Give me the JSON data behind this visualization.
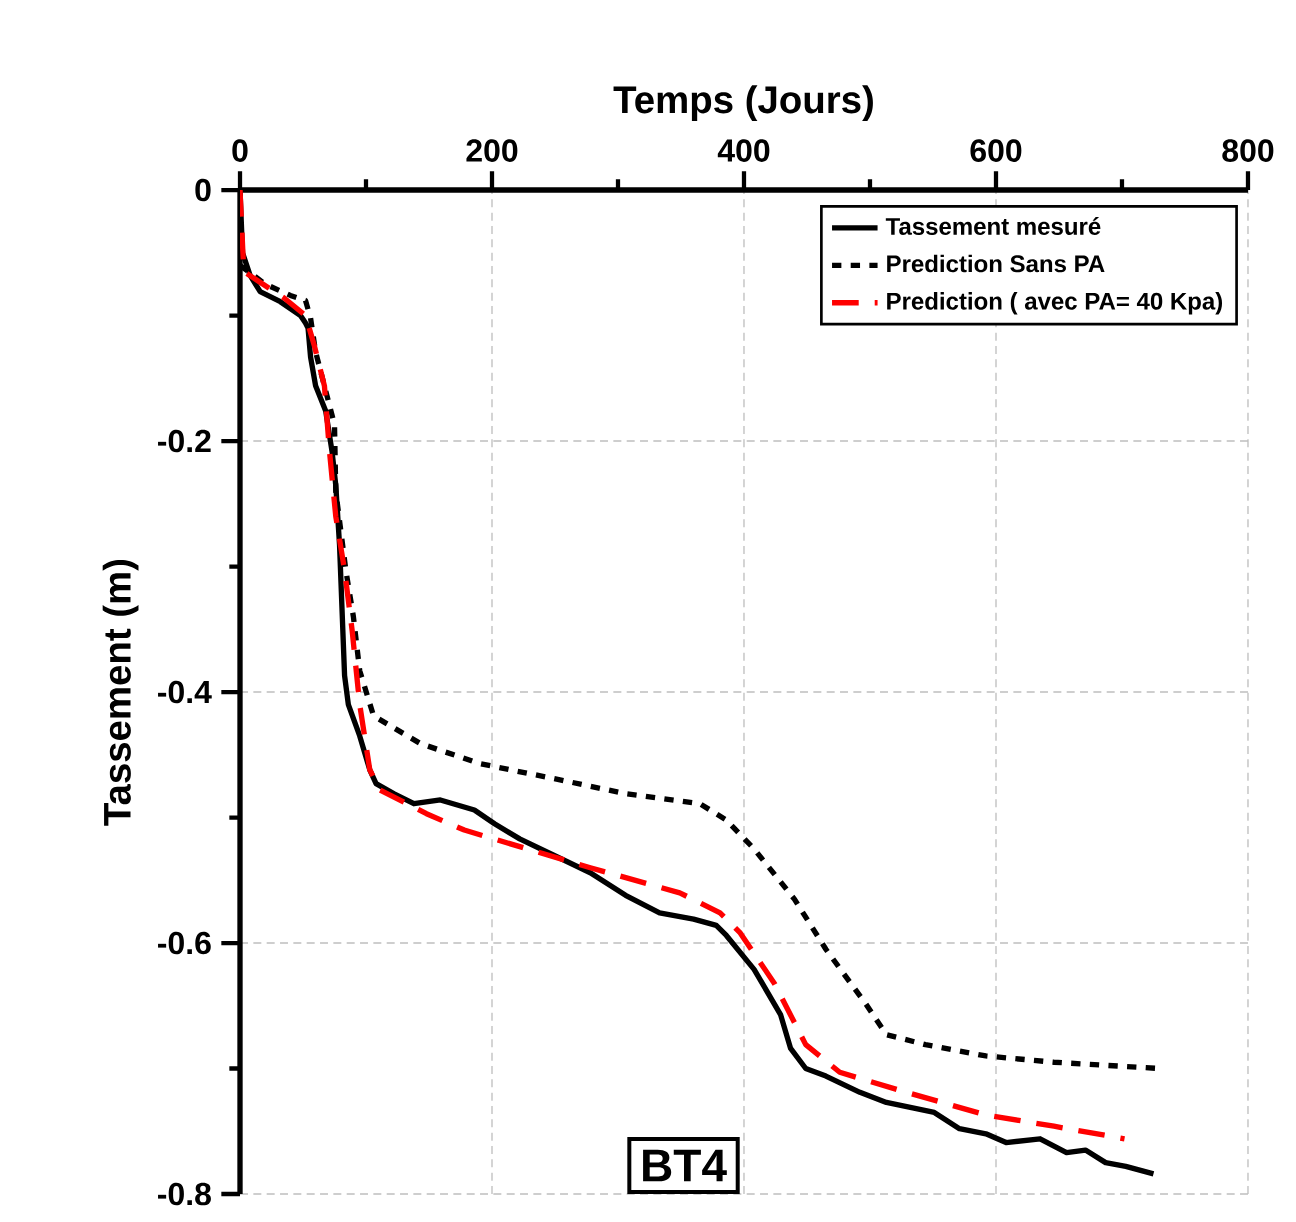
{
  "chart_data": {
    "type": "line",
    "xlabel": "Temps (Jours)",
    "ylabel": "Tassement (m)",
    "xlim": [
      0,
      800
    ],
    "ylim": [
      -0.8,
      0
    ],
    "xticks": [
      0,
      200,
      400,
      600,
      800
    ],
    "yticks": [
      -0.8,
      -0.6,
      -0.4,
      -0.2,
      0
    ],
    "grid": true,
    "legend": "top right",
    "annotations": [
      "BT4"
    ],
    "series": [
      {
        "name": "Tassement mesuré",
        "color": "#000000",
        "line_style": "solid",
        "x": [
          0,
          2,
          8,
          16,
          32,
          48,
          52,
          54,
          56,
          60,
          68,
          73,
          76,
          79,
          83,
          86,
          95,
          103,
          108,
          122,
          138,
          159,
          186,
          202,
          222,
          278,
          306,
          333,
          360,
          378,
          386,
          408,
          429,
          437,
          449,
          465,
          492,
          513,
          551,
          571,
          592,
          608,
          635,
          656,
          671,
          687,
          703,
          725
        ],
        "values": [
          0,
          -0.05,
          -0.068,
          -0.081,
          -0.089,
          -0.1,
          -0.106,
          -0.11,
          -0.133,
          -0.156,
          -0.176,
          -0.208,
          -0.235,
          -0.283,
          -0.387,
          -0.41,
          -0.435,
          -0.462,
          -0.473,
          -0.481,
          -0.489,
          -0.486,
          -0.494,
          -0.505,
          -0.517,
          -0.544,
          -0.562,
          -0.576,
          -0.581,
          -0.586,
          -0.594,
          -0.621,
          -0.657,
          -0.684,
          -0.7,
          -0.706,
          -0.719,
          -0.727,
          -0.735,
          -0.748,
          -0.752,
          -0.759,
          -0.756,
          -0.767,
          -0.765,
          -0.775,
          -0.778,
          -0.784
        ]
      },
      {
        "name": "Prediction Sans PA",
        "color": "#000000",
        "line_style": "dotted",
        "x": [
          0,
          20,
          40,
          52,
          56,
          60,
          75,
          76,
          84,
          90,
          95,
          106,
          143,
          190,
          254,
          306,
          365,
          386,
          408,
          440,
          465,
          497,
          513,
          544,
          592,
          646,
          730
        ],
        "values": [
          -0.06,
          -0.075,
          -0.084,
          -0.088,
          -0.102,
          -0.129,
          -0.187,
          -0.24,
          -0.303,
          -0.34,
          -0.383,
          -0.419,
          -0.441,
          -0.457,
          -0.47,
          -0.481,
          -0.489,
          -0.502,
          -0.525,
          -0.565,
          -0.605,
          -0.649,
          -0.673,
          -0.681,
          -0.69,
          -0.695,
          -0.7
        ]
      },
      {
        "name": "Prediction ( avec PA= 40 Kpa)",
        "color": "#ff0000",
        "line_style": "dashed",
        "x": [
          0,
          3,
          35,
          52,
          59,
          67,
          71,
          76,
          83,
          89,
          95,
          103,
          111,
          148,
          178,
          278,
          349,
          381,
          397,
          424,
          449,
          476,
          529,
          592,
          646,
          702
        ],
        "values": [
          0,
          -0.065,
          -0.086,
          -0.1,
          -0.124,
          -0.156,
          -0.208,
          -0.26,
          -0.303,
          -0.351,
          -0.41,
          -0.462,
          -0.478,
          -0.497,
          -0.51,
          -0.54,
          -0.56,
          -0.576,
          -0.592,
          -0.632,
          -0.681,
          -0.703,
          -0.719,
          -0.737,
          -0.746,
          -0.756
        ]
      }
    ]
  }
}
